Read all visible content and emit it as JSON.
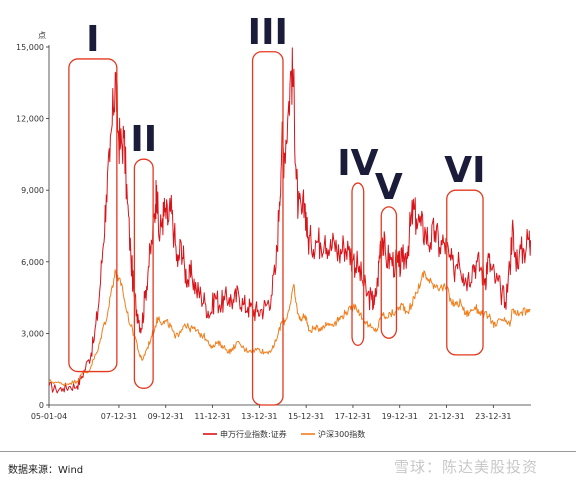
{
  "chart_data": {
    "type": "line",
    "y_unit_label": "点",
    "ylim": [
      0,
      15000
    ],
    "y_ticks": [
      0,
      3000,
      6000,
      9000,
      12000,
      15000
    ],
    "y_tick_labels": [
      "0",
      "3,000",
      "6,000",
      "9,000",
      "12,000",
      "15,000"
    ],
    "x_ticks": [
      2005.0,
      2007.99,
      2009.99,
      2011.99,
      2013.99,
      2015.99,
      2017.99,
      2019.99,
      2021.99,
      2023.99
    ],
    "x_tick_labels": [
      "05-01-04",
      "07-12-31",
      "09-12-31",
      "11-12-31",
      "13-12-31",
      "15-12-31",
      "17-12-31",
      "19-12-31",
      "21-12-31",
      "23-12-31"
    ],
    "xlim": [
      2005.0,
      2025.6
    ],
    "grid": false,
    "legend_position": "bottom",
    "series": [
      {
        "name": "申万行业指数:证券",
        "color": "#d7141a",
        "points": [
          [
            2005.0,
            800
          ],
          [
            2005.3,
            650
          ],
          [
            2005.6,
            700
          ],
          [
            2005.9,
            780
          ],
          [
            2006.2,
            800
          ],
          [
            2006.4,
            1200
          ],
          [
            2006.7,
            1900
          ],
          [
            2006.9,
            2600
          ],
          [
            2007.1,
            4000
          ],
          [
            2007.3,
            6500
          ],
          [
            2007.45,
            8800
          ],
          [
            2007.6,
            10200
          ],
          [
            2007.75,
            12500
          ],
          [
            2007.85,
            13800
          ],
          [
            2007.95,
            11500
          ],
          [
            2008.05,
            10800
          ],
          [
            2008.2,
            11200
          ],
          [
            2008.35,
            8500
          ],
          [
            2008.5,
            6200
          ],
          [
            2008.65,
            4500
          ],
          [
            2008.8,
            3800
          ],
          [
            2008.95,
            3200
          ],
          [
            2009.1,
            4500
          ],
          [
            2009.25,
            5800
          ],
          [
            2009.4,
            6800
          ],
          [
            2009.55,
            8400
          ],
          [
            2009.6,
            9200
          ],
          [
            2009.7,
            7000
          ],
          [
            2009.85,
            7800
          ],
          [
            2009.95,
            8100
          ],
          [
            2010.1,
            7700
          ],
          [
            2010.2,
            8200
          ],
          [
            2010.35,
            7200
          ],
          [
            2010.5,
            5800
          ],
          [
            2010.65,
            6800
          ],
          [
            2010.8,
            5700
          ],
          [
            2010.95,
            5200
          ],
          [
            2011.1,
            5500
          ],
          [
            2011.3,
            4800
          ],
          [
            2011.5,
            4600
          ],
          [
            2011.7,
            4200
          ],
          [
            2011.9,
            3800
          ],
          [
            2012.1,
            4600
          ],
          [
            2012.3,
            4200
          ],
          [
            2012.5,
            4400
          ],
          [
            2012.7,
            4500
          ],
          [
            2012.9,
            4300
          ],
          [
            2013.1,
            4700
          ],
          [
            2013.3,
            4200
          ],
          [
            2013.5,
            4100
          ],
          [
            2013.7,
            4000
          ],
          [
            2013.9,
            3900
          ],
          [
            2014.1,
            4000
          ],
          [
            2014.3,
            4200
          ],
          [
            2014.5,
            4600
          ],
          [
            2014.7,
            5800
          ],
          [
            2014.85,
            8500
          ],
          [
            2014.95,
            11000
          ],
          [
            2015.05,
            10500
          ],
          [
            2015.2,
            12000
          ],
          [
            2015.35,
            14000
          ],
          [
            2015.45,
            13500
          ],
          [
            2015.55,
            10000
          ],
          [
            2015.65,
            8200
          ],
          [
            2015.8,
            8000
          ],
          [
            2015.95,
            8400
          ],
          [
            2016.05,
            7000
          ],
          [
            2016.2,
            6800
          ],
          [
            2016.4,
            6900
          ],
          [
            2016.6,
            6800
          ],
          [
            2016.8,
            7100
          ],
          [
            2017.0,
            6500
          ],
          [
            2017.2,
            6800
          ],
          [
            2017.4,
            6300
          ],
          [
            2017.6,
            6700
          ],
          [
            2017.8,
            6500
          ],
          [
            2018.0,
            6100
          ],
          [
            2018.2,
            5800
          ],
          [
            2018.4,
            5200
          ],
          [
            2018.6,
            4600
          ],
          [
            2018.8,
            4400
          ],
          [
            2018.9,
            4200
          ],
          [
            2019.05,
            5200
          ],
          [
            2019.15,
            6700
          ],
          [
            2019.25,
            7000
          ],
          [
            2019.4,
            6200
          ],
          [
            2019.6,
            6100
          ],
          [
            2019.8,
            5900
          ],
          [
            2019.95,
            5800
          ],
          [
            2020.1,
            6000
          ],
          [
            2020.3,
            6400
          ],
          [
            2020.45,
            7500
          ],
          [
            2020.55,
            8100
          ],
          [
            2020.7,
            7800
          ],
          [
            2020.9,
            7500
          ],
          [
            2021.1,
            7200
          ],
          [
            2021.3,
            6800
          ],
          [
            2021.5,
            7300
          ],
          [
            2021.7,
            6600
          ],
          [
            2021.9,
            6800
          ],
          [
            2022.1,
            6200
          ],
          [
            2022.3,
            5600
          ],
          [
            2022.5,
            6400
          ],
          [
            2022.7,
            5500
          ],
          [
            2022.9,
            5300
          ],
          [
            2023.1,
            5800
          ],
          [
            2023.3,
            6000
          ],
          [
            2023.5,
            5600
          ],
          [
            2023.65,
            5300
          ],
          [
            2023.75,
            6100
          ],
          [
            2023.9,
            5700
          ],
          [
            2024.1,
            5200
          ],
          [
            2024.3,
            4800
          ],
          [
            2024.5,
            4300
          ],
          [
            2024.7,
            5800
          ],
          [
            2024.8,
            7500
          ],
          [
            2024.9,
            6200
          ],
          [
            2025.1,
            6300
          ],
          [
            2025.3,
            6500
          ],
          [
            2025.5,
            7000
          ],
          [
            2025.58,
            6900
          ]
        ]
      },
      {
        "name": "沪深300指数",
        "color": "#f07f1d",
        "points": [
          [
            2005.0,
            1000
          ],
          [
            2005.3,
            950
          ],
          [
            2005.6,
            870
          ],
          [
            2005.9,
            920
          ],
          [
            2006.2,
            1000
          ],
          [
            2006.4,
            1300
          ],
          [
            2006.7,
            1400
          ],
          [
            2006.9,
            1900
          ],
          [
            2007.1,
            2300
          ],
          [
            2007.3,
            3200
          ],
          [
            2007.5,
            3800
          ],
          [
            2007.7,
            5000
          ],
          [
            2007.85,
            5600
          ],
          [
            2007.95,
            5200
          ],
          [
            2008.1,
            5100
          ],
          [
            2008.3,
            4000
          ],
          [
            2008.5,
            3300
          ],
          [
            2008.7,
            2800
          ],
          [
            2008.9,
            2000
          ],
          [
            2009.0,
            1900
          ],
          [
            2009.2,
            2400
          ],
          [
            2009.4,
            2900
          ],
          [
            2009.6,
            3500
          ],
          [
            2009.7,
            3700
          ],
          [
            2009.85,
            3400
          ],
          [
            2010.0,
            3500
          ],
          [
            2010.2,
            3300
          ],
          [
            2010.4,
            2800
          ],
          [
            2010.6,
            3100
          ],
          [
            2010.8,
            3400
          ],
          [
            2011.0,
            3200
          ],
          [
            2011.2,
            3200
          ],
          [
            2011.4,
            3000
          ],
          [
            2011.6,
            2900
          ],
          [
            2011.8,
            2700
          ],
          [
            2011.99,
            2400
          ],
          [
            2012.2,
            2600
          ],
          [
            2012.4,
            2500
          ],
          [
            2012.6,
            2300
          ],
          [
            2012.8,
            2250
          ],
          [
            2013.0,
            2600
          ],
          [
            2013.2,
            2500
          ],
          [
            2013.4,
            2300
          ],
          [
            2013.6,
            2300
          ],
          [
            2013.8,
            2300
          ],
          [
            2013.99,
            2350
          ],
          [
            2014.2,
            2200
          ],
          [
            2014.4,
            2250
          ],
          [
            2014.6,
            2400
          ],
          [
            2014.8,
            3000
          ],
          [
            2014.95,
            3500
          ],
          [
            2015.1,
            3500
          ],
          [
            2015.3,
            4200
          ],
          [
            2015.45,
            5000
          ],
          [
            2015.55,
            4300
          ],
          [
            2015.7,
            3600
          ],
          [
            2015.85,
            3700
          ],
          [
            2015.99,
            3700
          ],
          [
            2016.1,
            3100
          ],
          [
            2016.3,
            3200
          ],
          [
            2016.5,
            3200
          ],
          [
            2016.7,
            3300
          ],
          [
            2016.9,
            3400
          ],
          [
            2017.1,
            3400
          ],
          [
            2017.3,
            3500
          ],
          [
            2017.5,
            3700
          ],
          [
            2017.7,
            3900
          ],
          [
            2017.9,
            4000
          ],
          [
            2018.1,
            4200
          ],
          [
            2018.3,
            3800
          ],
          [
            2018.5,
            3500
          ],
          [
            2018.7,
            3300
          ],
          [
            2018.9,
            3100
          ],
          [
            2019.05,
            3200
          ],
          [
            2019.2,
            3800
          ],
          [
            2019.4,
            3700
          ],
          [
            2019.6,
            3800
          ],
          [
            2019.8,
            3900
          ],
          [
            2019.99,
            4100
          ],
          [
            2020.1,
            4200
          ],
          [
            2020.3,
            3900
          ],
          [
            2020.5,
            4200
          ],
          [
            2020.7,
            4700
          ],
          [
            2020.9,
            5200
          ],
          [
            2021.05,
            5600
          ],
          [
            2021.2,
            5200
          ],
          [
            2021.4,
            5100
          ],
          [
            2021.6,
            5000
          ],
          [
            2021.8,
            4900
          ],
          [
            2021.99,
            4900
          ],
          [
            2022.2,
            4300
          ],
          [
            2022.4,
            4200
          ],
          [
            2022.6,
            4300
          ],
          [
            2022.8,
            3800
          ],
          [
            2023.0,
            3900
          ],
          [
            2023.2,
            4100
          ],
          [
            2023.4,
            3900
          ],
          [
            2023.6,
            3800
          ],
          [
            2023.8,
            3700
          ],
          [
            2023.99,
            3400
          ],
          [
            2024.1,
            3300
          ],
          [
            2024.3,
            3600
          ],
          [
            2024.5,
            3500
          ],
          [
            2024.7,
            3300
          ],
          [
            2024.8,
            4000
          ],
          [
            2024.95,
            3800
          ],
          [
            2025.2,
            3900
          ],
          [
            2025.4,
            3900
          ],
          [
            2025.58,
            4000
          ]
        ]
      }
    ],
    "annotations": [
      {
        "label": "I",
        "x_range": [
          2005.85,
          2007.9
        ],
        "y_range": [
          1400,
          14500
        ]
      },
      {
        "label": "II",
        "x_range": [
          2008.65,
          2009.45
        ],
        "y_range": [
          700,
          10300
        ]
      },
      {
        "label": "III",
        "x_range": [
          2013.7,
          2015.0
        ],
        "y_range": [
          0,
          14800
        ]
      },
      {
        "label": "IV",
        "x_range": [
          2017.95,
          2018.45
        ],
        "y_range": [
          2500,
          9300
        ]
      },
      {
        "label": "V",
        "x_range": [
          2019.2,
          2019.85
        ],
        "y_range": [
          2800,
          8300
        ]
      },
      {
        "label": "VI",
        "x_range": [
          2022.0,
          2023.55
        ],
        "y_range": [
          2100,
          9000
        ]
      }
    ]
  },
  "footer": {
    "source": "数据来源：Wind",
    "watermark": "雪球：陈达美股投资"
  }
}
